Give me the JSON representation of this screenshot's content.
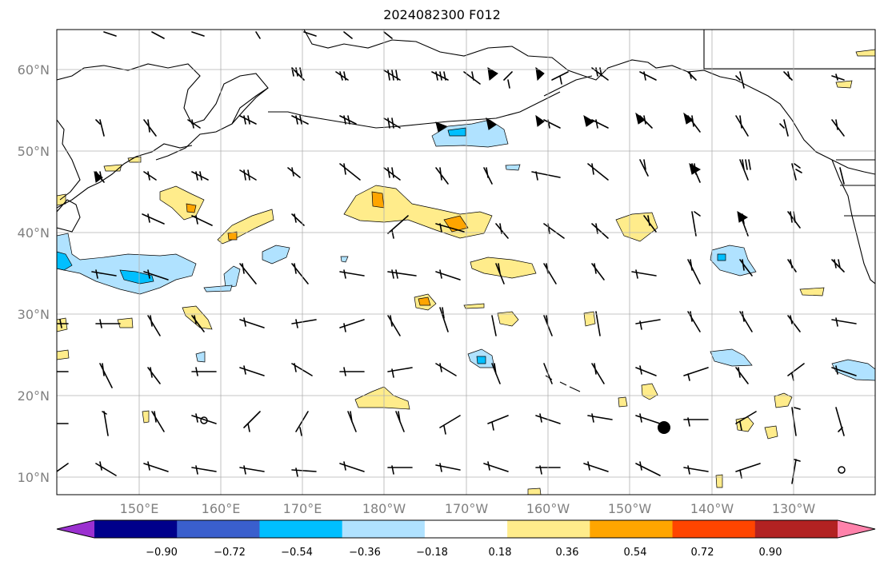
{
  "title": "2024082300 F012",
  "latitude_labels": [
    "60°N",
    "50°N",
    "40°N",
    "30°N",
    "20°N",
    "10°N"
  ],
  "longitude_labels": [
    "150°E",
    "160°E",
    "170°E",
    "180°W",
    "170°W",
    "160°W",
    "150°W",
    "140°W",
    "130°W"
  ],
  "colorbar": {
    "tick_labels": [
      "−0.90",
      "−0.72",
      "−0.54",
      "−0.36",
      "−0.18",
      "0.18",
      "0.36",
      "0.54",
      "0.72",
      "0.90"
    ],
    "colors": [
      "#9b30d0",
      "#00008b",
      "#3a5fcd",
      "#00bfff",
      "#b0e2ff",
      "#ffffff",
      "#ffec8b",
      "#ffa500",
      "#ff4500",
      "#b22222",
      "#ff82ab"
    ]
  },
  "colors": {
    "positive_1": "#ffec8b",
    "positive_2": "#ffa500",
    "negative_1": "#b0e2ff",
    "negative_2": "#00bfff",
    "grid": "#b0b0b0",
    "marker": "#000000"
  },
  "features": {
    "marker": "filled circle near 146°W, 16°N",
    "calm_circles": 2
  }
}
